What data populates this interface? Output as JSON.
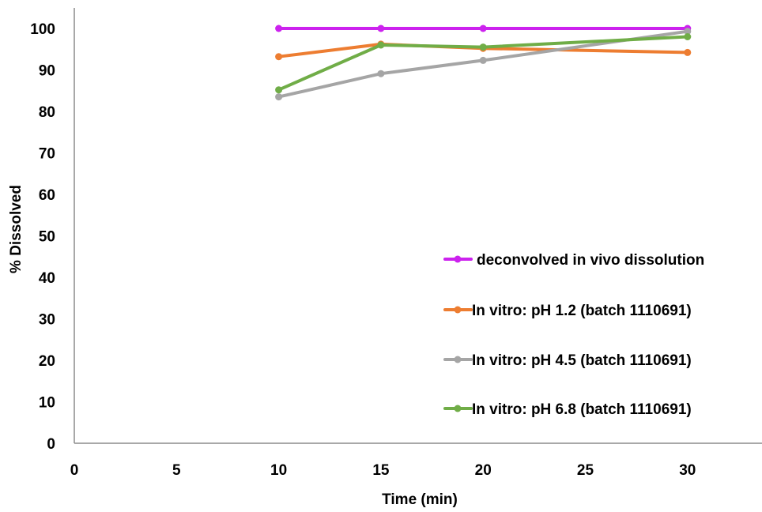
{
  "chart_data": {
    "type": "line",
    "title": "",
    "xlabel": "Time (min)",
    "ylabel": "% Dissolved",
    "xlim": [
      0,
      34
    ],
    "ylim": [
      0,
      100
    ],
    "xticks": [
      0,
      5,
      10,
      15,
      20,
      25,
      30
    ],
    "yticks": [
      0,
      10,
      20,
      30,
      40,
      50,
      60,
      70,
      80,
      90,
      100
    ],
    "grid": false,
    "legend_position": "bottom-right",
    "series": [
      {
        "name": "deconvolved in vivo dissolution",
        "color": "#CC22EE",
        "x": [
          10,
          15,
          20,
          30
        ],
        "y": [
          100,
          100,
          100,
          100
        ]
      },
      {
        "name": "In vitro: pH 1.2 (batch 1110691)",
        "color": "#ED7D31",
        "x": [
          10,
          15,
          20,
          30
        ],
        "y": [
          93.2,
          96.2,
          95.2,
          94.2
        ]
      },
      {
        "name": "In vitro: pH 4.5 (batch 1110691)",
        "color": "#A5A5A5",
        "x": [
          10,
          15,
          20,
          30
        ],
        "y": [
          83.5,
          89.1,
          92.3,
          99.3
        ]
      },
      {
        "name": "In vitro: pH 6.8 (batch 1110691)",
        "color": "#70AD47",
        "x": [
          10,
          15,
          20,
          30
        ],
        "y": [
          85.2,
          96.0,
          95.5,
          98.0
        ]
      }
    ]
  }
}
